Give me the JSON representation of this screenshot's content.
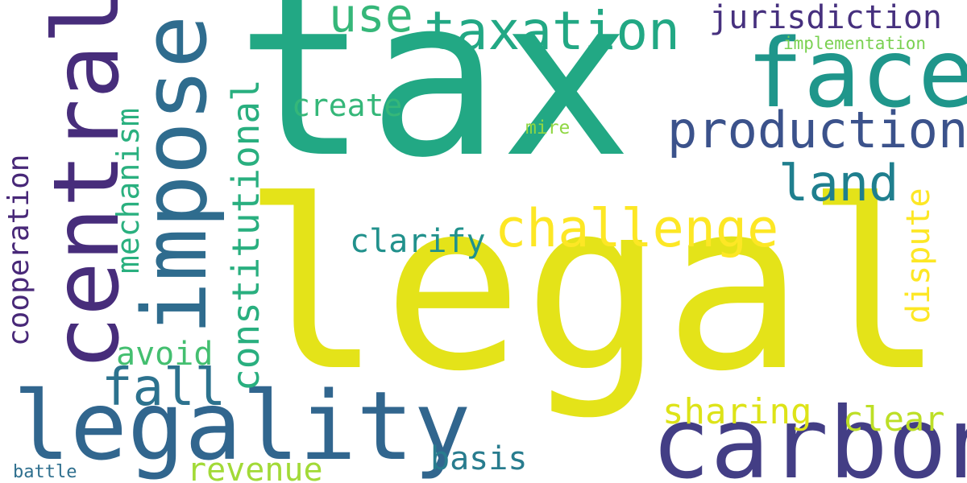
{
  "words": {
    "tax": {
      "text": "tax",
      "color": "#22a884"
    },
    "legal": {
      "text": "legal",
      "color": "#e4e319"
    },
    "carbon": {
      "text": "carbon",
      "color": "#433e85"
    },
    "legality": {
      "text": "legality",
      "color": "#31668e"
    },
    "central": {
      "text": "central",
      "color": "#472d7b"
    },
    "impose": {
      "text": "impose",
      "color": "#2f6c8e"
    },
    "face": {
      "text": "face",
      "color": "#1f968b"
    },
    "production": {
      "text": "production",
      "color": "#3b528b"
    },
    "taxation": {
      "text": "taxation",
      "color": "#22a884"
    },
    "challenge": {
      "text": "challenge",
      "color": "#fde725"
    },
    "land": {
      "text": "land",
      "color": "#1f7f8e"
    },
    "use": {
      "text": "use",
      "color": "#35b779"
    },
    "jurisdiction": {
      "text": "jurisdiction",
      "color": "#46307e"
    },
    "implementation": {
      "text": "implementation",
      "color": "#7ad151"
    },
    "create": {
      "text": "create",
      "color": "#35b779"
    },
    "mire": {
      "text": "mire",
      "color": "#90d743"
    },
    "clarify": {
      "text": "clarify",
      "color": "#21918c"
    },
    "dispute": {
      "text": "dispute",
      "color": "#fde725"
    },
    "constitutional": {
      "text": "constitutional",
      "color": "#29af7f"
    },
    "mechanism": {
      "text": "mechanism",
      "color": "#2ab07f"
    },
    "cooperation": {
      "text": "cooperation",
      "color": "#482878"
    },
    "avoid": {
      "text": "avoid",
      "color": "#44bf70"
    },
    "fall": {
      "text": "fall",
      "color": "#2c728e"
    },
    "sharing": {
      "text": "sharing",
      "color": "#dde318"
    },
    "clear": {
      "text": "clear",
      "color": "#bddf26"
    },
    "basis": {
      "text": "basis",
      "color": "#287c8e"
    },
    "revenue": {
      "text": "revenue",
      "color": "#a2da37"
    },
    "battle": {
      "text": "battle",
      "color": "#2e6f8e"
    }
  }
}
